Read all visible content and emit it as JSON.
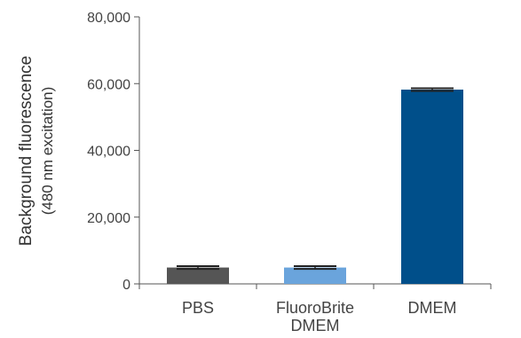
{
  "chart_data": {
    "type": "bar",
    "title": "",
    "xlabel": "",
    "ylabel": "Background fluorescence",
    "ylabel_sub": "(480 nm excitation)",
    "categories": [
      {
        "label_lines": [
          "PBS"
        ]
      },
      {
        "label_lines": [
          "FluoroBrite",
          "DMEM"
        ]
      },
      {
        "label_lines": [
          "DMEM"
        ]
      }
    ],
    "values": [
      4900,
      4900,
      58200
    ],
    "errors": [
      400,
      400,
      400
    ],
    "colors": [
      "#555555",
      "#6aa4dc",
      "#004f8a"
    ],
    "ylim": [
      0,
      80000
    ],
    "yticks": [
      {
        "value": 0,
        "label": "0"
      },
      {
        "value": 20000,
        "label": "20,000"
      },
      {
        "value": 40000,
        "label": "40,000"
      },
      {
        "value": 60000,
        "label": "60,000"
      },
      {
        "value": 80000,
        "label": "80,000"
      }
    ],
    "grid": false,
    "legend": "none"
  }
}
